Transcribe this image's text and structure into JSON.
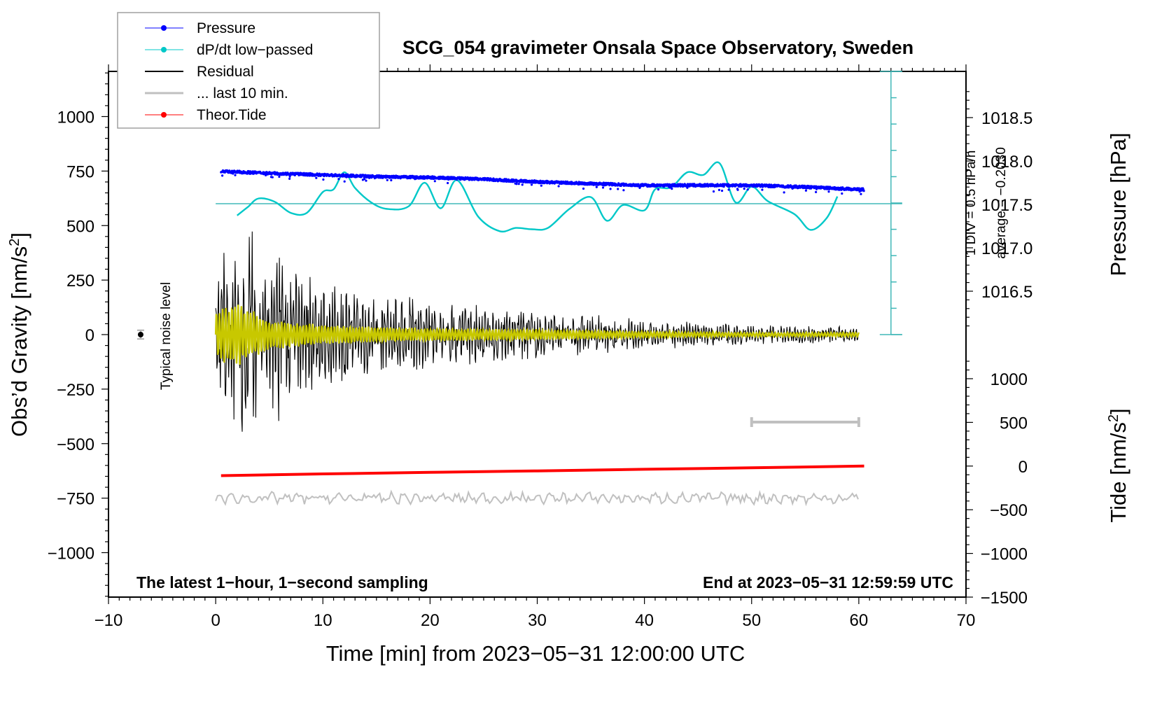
{
  "chart_data": {
    "type": "line",
    "title": "SCG_054 gravimeter Onsala Space Observatory, Sweden",
    "xlabel": "Time [min] from 2023−05−31 12:00:00 UTC",
    "ylabel": "Obs’d Gravity [nm/s²]",
    "ylabel_right_top": "Pressure [hPa]",
    "ylabel_right_bottom": "Tide [nm/s²]",
    "xlim": [
      -10,
      70
    ],
    "ylim": [
      -1200,
      1200
    ],
    "pressure_ylim": [
      1016.0,
      1019.0
    ],
    "tide_ylim": [
      -1500,
      1000
    ],
    "grid": false,
    "legend_position": "top-left",
    "x_ticks": [
      -10,
      0,
      10,
      20,
      30,
      40,
      50,
      60,
      70
    ],
    "x_tick_labels": [
      "−10",
      "0",
      "10",
      "20",
      "30",
      "40",
      "50",
      "60",
      "70"
    ],
    "y_ticks": [
      1000,
      750,
      500,
      250,
      0,
      -250,
      -500,
      -750,
      -1000
    ],
    "y_tick_labels": [
      "1000",
      "750",
      "500",
      "250",
      "0",
      "−250",
      "−500",
      "−750",
      "−1000"
    ],
    "pressure_ticks": [
      1018.5,
      1018.0,
      1017.5,
      1017.0,
      1016.5
    ],
    "pressure_tick_labels": [
      "1018.5",
      "1018.0",
      "1017.5",
      "1017.0",
      "1016.5"
    ],
    "tide_ticks": [
      1000,
      500,
      0,
      -500,
      -1000,
      -1500
    ],
    "tide_tick_labels": [
      "1000",
      "500",
      "0",
      "−500",
      "−1000",
      "−1500"
    ],
    "legend": [
      {
        "label": "Pressure",
        "color": "#0000ff",
        "marker": true
      },
      {
        "label": "dP/dt low−passed",
        "color": "#00c8c8",
        "marker": true
      },
      {
        "label": "Residual",
        "color": "#000000",
        "marker": false
      },
      {
        "label": "... last 10 min.",
        "color": "#c0c0c0",
        "marker": false
      },
      {
        "label": "Theor.Tide",
        "color": "#ff0000",
        "marker": true
      }
    ],
    "series": [
      {
        "name": "Pressure",
        "axis": "pressure",
        "color": "#0000ff",
        "style": "points",
        "x": [
          0.5,
          5,
          10,
          15,
          20,
          25,
          30,
          35,
          40,
          45,
          50,
          55,
          60.5
        ],
        "y": [
          1017.88,
          1017.86,
          1017.84,
          1017.82,
          1017.81,
          1017.79,
          1017.76,
          1017.74,
          1017.72,
          1017.72,
          1017.72,
          1017.7,
          1017.67
        ],
        "noise_amplitude_hpa": 0.03
      },
      {
        "name": "dP/dt low-passed",
        "axis": "dpdt",
        "color": "#00c8c8",
        "style": "line",
        "x": [
          2,
          3,
          4,
          5.5,
          7,
          8.5,
          10,
          11,
          12,
          13,
          14.5,
          16,
          18,
          19.5,
          21,
          22.5,
          24.5,
          26.5,
          28,
          29.5,
          31,
          33,
          35,
          36.5,
          38,
          40,
          41,
          42.5,
          44,
          45.5,
          47,
          48.5,
          50,
          51.5,
          54,
          55.5,
          57,
          58
        ],
        "y": [
          0.82,
          0.95,
          1.08,
          1.03,
          0.86,
          0.86,
          1.18,
          1.22,
          1.48,
          1.24,
          1.02,
          0.92,
          0.96,
          1.32,
          0.93,
          1.36,
          0.8,
          0.58,
          0.63,
          0.61,
          0.63,
          0.92,
          1.1,
          0.74,
          0.98,
          0.9,
          1.22,
          1.25,
          1.48,
          1.44,
          1.62,
          1.02,
          1.26,
          1.04,
          0.84,
          0.6,
          0.78,
          1.11
        ],
        "units": "DIV (1 DIV = 0.5 hPa/h), average line at 1.0 DIV"
      },
      {
        "name": "Residual",
        "axis": "gravity",
        "color": "#000000",
        "style": "line",
        "description": "decaying oscillation (earthquake surface waves)",
        "envelope_x": [
          0,
          2,
          5,
          10,
          20,
          30,
          40,
          50,
          60
        ],
        "envelope_y": [
          320,
          500,
          420,
          230,
          150,
          110,
          70,
          45,
          35
        ]
      },
      {
        "name": "Residual (band-passed)",
        "axis": "gravity",
        "color": "#c8c800",
        "style": "line",
        "envelope_x": [
          0,
          2,
          5,
          10,
          20,
          30,
          40,
          50,
          60
        ],
        "envelope_y": [
          110,
          160,
          70,
          45,
          30,
          25,
          15,
          10,
          10
        ]
      },
      {
        "name": "... last 10 min.",
        "axis": "gravity",
        "color": "#c0c0c0",
        "style": "line",
        "offset": -750,
        "amplitude": 30
      },
      {
        "name": "Theor.Tide",
        "axis": "tide",
        "color": "#ff0000",
        "style": "line",
        "x": [
          0.5,
          10,
          20,
          30,
          40,
          50,
          60.5
        ],
        "y": [
          -110,
          -90,
          -72,
          -55,
          -37,
          -20,
          0
        ]
      }
    ],
    "last10_marker": {
      "x": [
        50,
        60
      ],
      "gravity_y": -400,
      "color": "#c0c0c0"
    },
    "noise_level": {
      "x": -7,
      "y": 0,
      "error": 20,
      "label": "Typical noise level"
    },
    "dpdt_scale": {
      "label": "1 DIV = 0.5 hPa/h",
      "average_label": "average = −0.2030",
      "divisions": 10,
      "x": 63
    },
    "annotations": {
      "bottom_left": "The latest 1−hour, 1−second sampling",
      "bottom_right": "End at 2023−05−31 12:59:59 UTC"
    }
  }
}
